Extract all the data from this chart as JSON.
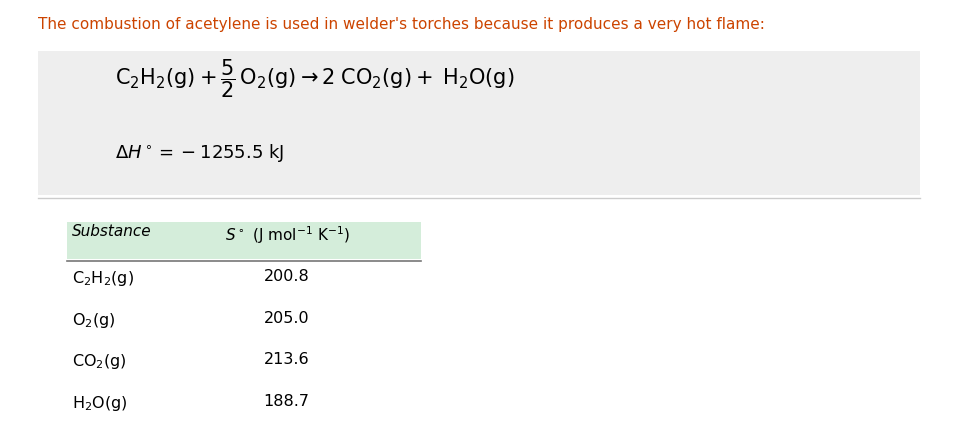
{
  "bg_color": "#ffffff",
  "top_text_color": "#cc4400",
  "top_text": "The combustion of acetylene is used in welder's torches because it produces a very hot flame:",
  "reaction_box_color": "#eeeeee",
  "table_header_bg": "#d4edda",
  "table_col1_header": "Substance",
  "font_size_top": 11,
  "font_size_eq": 15,
  "font_size_dh": 13,
  "font_size_table": 11,
  "separator_color": "#cccccc",
  "table_rows": [
    [
      "C_2H_2(g)",
      "200.8"
    ],
    [
      "O_2(g)",
      "205.0"
    ],
    [
      "CO_2(g)",
      "213.6"
    ],
    [
      "H_2O(g)",
      "188.7"
    ]
  ]
}
